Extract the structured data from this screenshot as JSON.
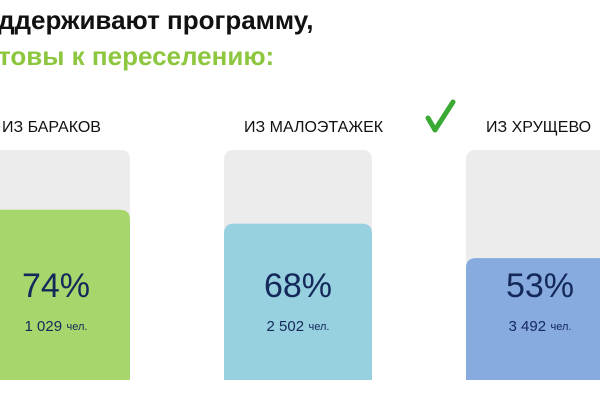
{
  "chart_data": {
    "type": "bar",
    "title": "ддерживают программу,",
    "subtitle": "товы к переселению:",
    "categories": [
      "ИЗ БАРАКОВ",
      "ИЗ МАЛОЭТАЖЕК",
      "ИЗ ХРУЩЕВО"
    ],
    "series": [
      {
        "name": null,
        "values": [
          74,
          68,
          53
        ],
        "value_labels": [
          "74%",
          "68%",
          "53%"
        ]
      }
    ],
    "colors": [
      "#a6d66c",
      "#97d0df",
      "#87aadf"
    ],
    "counts": [
      1029,
      2502,
      3492
    ],
    "count_labels": [
      "1 029",
      "2 502",
      "3 492"
    ],
    "count_unit": "чел.",
    "ylim": [
      0,
      100
    ]
  }
}
